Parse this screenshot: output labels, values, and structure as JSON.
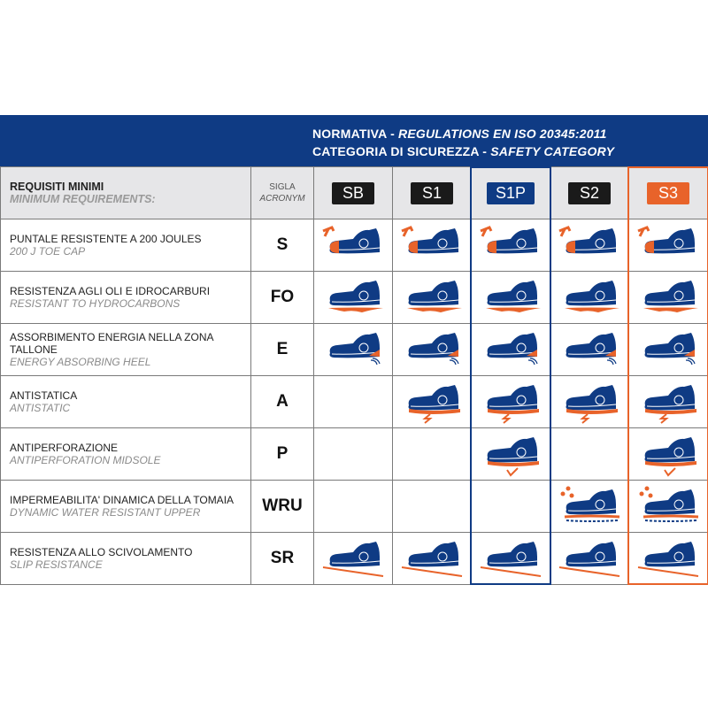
{
  "header": {
    "line1_normal": "NORMATIVA - ",
    "line1_italic": "REGULATIONS EN ISO 20345:2011",
    "line2_normal": "CATEGORIA DI SICUREZZA - ",
    "line2_italic": "SAFETY CATEGORY"
  },
  "table": {
    "requirements_it": "REQUISITI MINIMI",
    "requirements_en": "MINIMUM REQUIREMENTS:",
    "acronym_it": "SIGLA",
    "acronym_en": "ACRONYM",
    "categories": [
      {
        "label": "SB",
        "color": "#1a1a1a"
      },
      {
        "label": "S1",
        "color": "#1a1a1a"
      },
      {
        "label": "S1P",
        "color": "#0f3b84"
      },
      {
        "label": "S2",
        "color": "#1a1a1a"
      },
      {
        "label": "S3",
        "color": "#e8632a"
      }
    ],
    "rows": [
      {
        "it": "PUNTALE RESISTENTE A 200 JOULES",
        "en": "200 J TOE CAP",
        "acronym": "S",
        "icon": "toe-cap-shoe-icon",
        "present": [
          true,
          true,
          true,
          true,
          true
        ]
      },
      {
        "it": "RESISTENZA AGLI OLI E IDROCARBURI",
        "en": "RESISTANT TO HYDROCARBONS",
        "acronym": "FO",
        "icon": "oil-resistant-sole-shoe-icon",
        "present": [
          true,
          true,
          true,
          true,
          true
        ]
      },
      {
        "it": "ASSORBIMENTO ENERGIA NELLA ZONA TALLONE",
        "en": "ENERGY ABSORBING HEEL",
        "acronym": "E",
        "icon": "energy-heel-shoe-icon",
        "present": [
          true,
          true,
          true,
          true,
          true
        ]
      },
      {
        "it": "ANTISTATICA",
        "en": "ANTISTATIC",
        "acronym": "A",
        "icon": "antistatic-shoe-icon",
        "present": [
          false,
          true,
          true,
          true,
          true
        ]
      },
      {
        "it": "ANTIPERFORAZIONE",
        "en": "ANTIPERFORATION MIDSOLE",
        "acronym": "P",
        "icon": "antiperforation-shoe-icon",
        "present": [
          false,
          false,
          true,
          false,
          true
        ]
      },
      {
        "it": "IMPERMEABILITA' DINAMICA DELLA TOMAIA",
        "en": "DYNAMIC WATER  RESISTANT UPPER",
        "acronym": "WRU",
        "icon": "water-resistant-shoe-icon",
        "present": [
          false,
          false,
          false,
          true,
          true
        ]
      },
      {
        "it": "RESISTENZA ALLO SCIVOLAMENTO",
        "en": "SLIP RESISTANCE",
        "acronym": "SR",
        "icon": "slip-resistant-shoe-icon",
        "present": [
          true,
          true,
          true,
          true,
          true
        ]
      }
    ]
  },
  "colors": {
    "navy": "#0f3b84",
    "orange": "#e8632a"
  }
}
